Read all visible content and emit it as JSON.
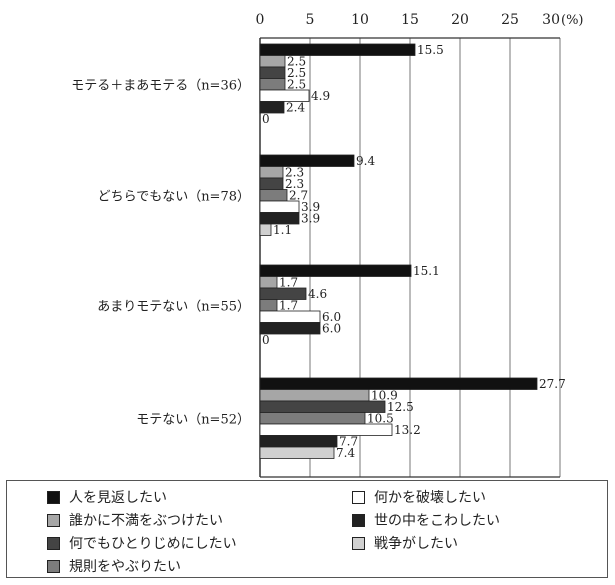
{
  "chart_data": {
    "type": "bar",
    "orientation": "horizontal",
    "unit_label": "(%)",
    "xlim": [
      0,
      30
    ],
    "x_ticks": [
      0,
      5,
      10,
      15,
      20,
      25,
      30
    ],
    "x_tick_labels": [
      "0",
      "5",
      "10",
      "15",
      "20",
      "25",
      "30"
    ],
    "grid": true,
    "legend_position": "bottom",
    "groups": [
      {
        "label": "モテる＋まあモテる（n=36）",
        "values": [
          15.5,
          2.5,
          2.5,
          2.5,
          4.9,
          2.4,
          0
        ]
      },
      {
        "label": "どちらでもない（n=78）",
        "values": [
          9.4,
          2.3,
          2.3,
          2.7,
          3.9,
          3.9,
          1.1
        ]
      },
      {
        "label": "あまりモテない（n=55）",
        "values": [
          15.1,
          1.7,
          4.6,
          1.7,
          6.0,
          6.0,
          0
        ]
      },
      {
        "label": "モテない（n=52）",
        "values": [
          27.7,
          10.9,
          12.5,
          10.5,
          13.2,
          7.7,
          7.4
        ]
      }
    ],
    "value_labels": [
      [
        "15.5",
        "2.5",
        "2.5",
        "2.5",
        "4.9",
        "2.4",
        "0"
      ],
      [
        "9.4",
        "2.3",
        "2.3",
        "2.7",
        "3.9",
        "3.9",
        "1.1"
      ],
      [
        "15.1",
        "1.7",
        "4.6",
        "1.7",
        "6.0",
        "6.0",
        "0"
      ],
      [
        "27.7",
        "10.9",
        "12.5",
        "10.5",
        "13.2",
        "7.7",
        "7.4"
      ]
    ],
    "series": [
      {
        "name": "人を見返したい",
        "color": "#111111"
      },
      {
        "name": "誰かに不満をぶつけたい",
        "color": "#a6a6a6"
      },
      {
        "name": "何でもひとりじめにしたい",
        "color": "#444444"
      },
      {
        "name": "規則をやぶりたい",
        "color": "#7c7c7c"
      },
      {
        "name": "何かを破壊したい",
        "color": "#ffffff"
      },
      {
        "name": "世の中をこわしたい",
        "color": "#222222"
      },
      {
        "name": "戦争がしたい",
        "color": "#d0d0d0"
      }
    ]
  },
  "legend": {
    "items": [
      {
        "label": "人を見返したい",
        "color": "#111111"
      },
      {
        "label": "誰かに不満をぶつけたい",
        "color": "#a6a6a6"
      },
      {
        "label": "何でもひとりじめにしたい",
        "color": "#444444"
      },
      {
        "label": "規則をやぶりたい",
        "color": "#7c7c7c"
      },
      {
        "label": "何かを破壊したい",
        "color": "#ffffff"
      },
      {
        "label": "世の中をこわしたい",
        "color": "#222222"
      },
      {
        "label": "戦争がしたい",
        "color": "#d0d0d0"
      }
    ]
  }
}
